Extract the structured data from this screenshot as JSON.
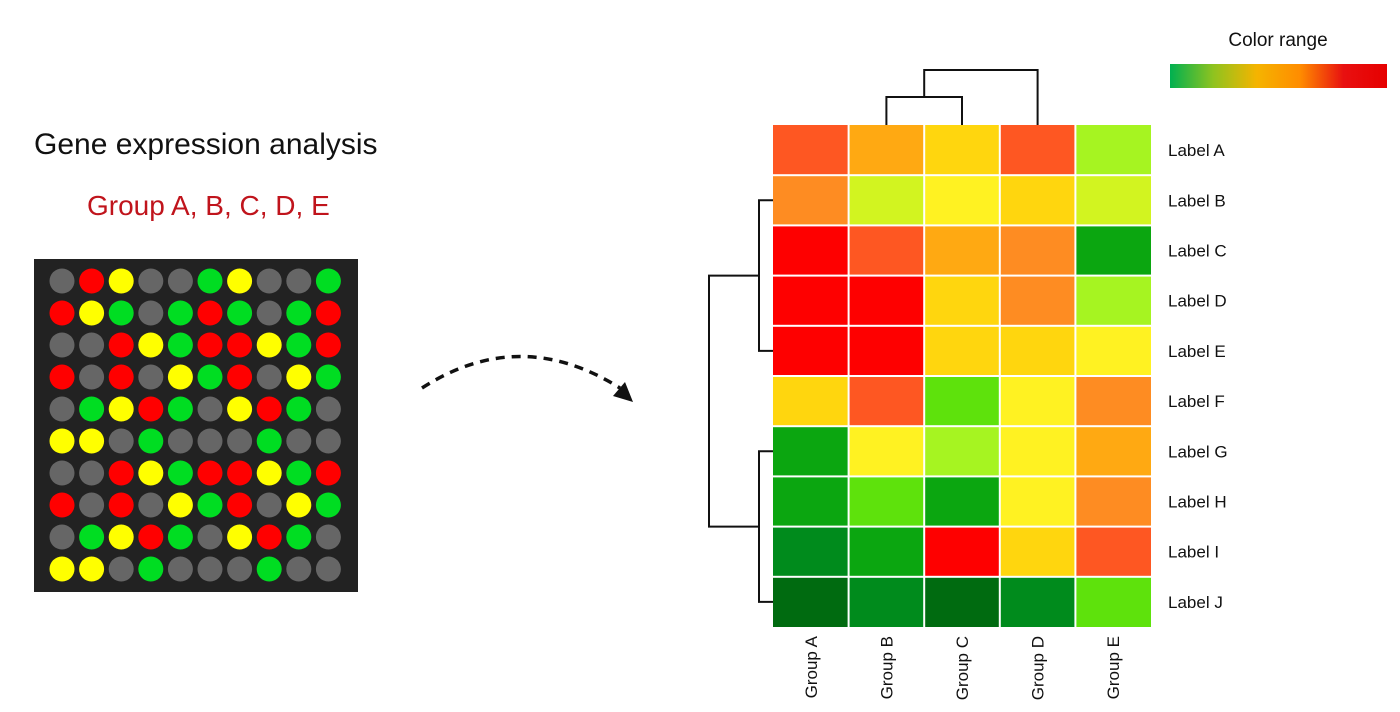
{
  "left_panel": {
    "title": "Gene expression analysis",
    "subtitle": "Group A, B, C, D, E",
    "microarray": {
      "colors": {
        "G": "#00dd22",
        "R": "#ff0000",
        "Y": "#ffff00",
        "X": "#666666"
      },
      "grid": [
        "XRYXXGYXXG",
        "RYGXGRGXGR",
        "XXRYGRRYGR",
        "RXRXYGRXYG",
        "XGYRGXYRGX",
        "YYXGXXXGXX",
        "XXRYGRRYGR",
        "RXRXYGRXYG",
        "XGYRGXYRGX",
        "YYXGXXXGXX"
      ]
    }
  },
  "legend": {
    "title": "Color range",
    "gradient": [
      "#00b050",
      "#8fc31f",
      "#f5b400",
      "#ff8c00",
      "#e81010",
      "#e60000"
    ]
  },
  "chart_data": {
    "type": "heatmap",
    "columns": [
      "Group A",
      "Group B",
      "Group C",
      "Group D",
      "Group E"
    ],
    "rows": [
      "Label A",
      "Label B",
      "Label C",
      "Label D",
      "Label E",
      "Label F",
      "Label G",
      "Label H",
      "Label I",
      "Label J"
    ],
    "colors": [
      [
        "#fe5722",
        "#ffa912",
        "#ffd60e",
        "#fe5722",
        "#a6f421"
      ],
      [
        "#fe8c22",
        "#d2f420",
        "#fff222",
        "#ffd60e",
        "#d2f420"
      ],
      [
        "#fe0000",
        "#fe5722",
        "#ffa912",
        "#fe8c22",
        "#0ba610"
      ],
      [
        "#fe0000",
        "#fe0000",
        "#ffd60e",
        "#fe8c22",
        "#a6f421"
      ],
      [
        "#fe0000",
        "#fe0000",
        "#ffd60e",
        "#ffd60e",
        "#fff222"
      ],
      [
        "#ffd60e",
        "#fe5722",
        "#5ee20c",
        "#fff222",
        "#fe8c22"
      ],
      [
        "#0ba610",
        "#fff222",
        "#a6f421",
        "#fff222",
        "#ffa912"
      ],
      [
        "#0ba610",
        "#5ee20c",
        "#0ba610",
        "#fff222",
        "#fe8c22"
      ],
      [
        "#008b1c",
        "#0ba610",
        "#fe0000",
        "#ffd60e",
        "#fe5722"
      ],
      [
        "#006b10",
        "#008b1c",
        "#006b10",
        "#008b1c",
        "#5ee20c"
      ]
    ],
    "col_dendrogram": [
      [
        "Group B",
        "Group C"
      ],
      "Group D"
    ],
    "row_dendrogram": [
      [
        [
          "Label B",
          "Label C",
          "Label D",
          "Label E"
        ]
      ],
      [
        [
          "Label G",
          "Label H",
          "Label I",
          "Label J"
        ]
      ]
    ],
    "legend": "top-right"
  }
}
